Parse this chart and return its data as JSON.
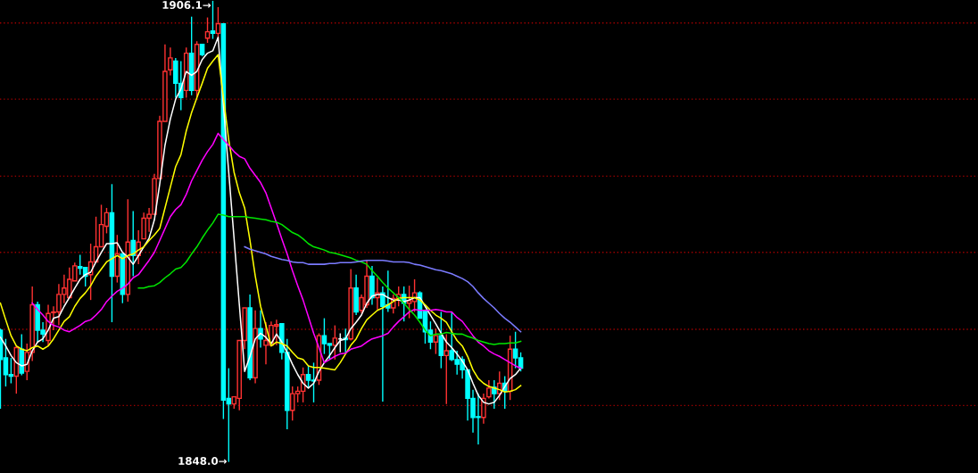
{
  "chart_data": {
    "type": "candlestick",
    "categories": [
      null,
      null,
      null,
      null,
      null,
      null,
      null,
      null,
      null,
      null,
      null,
      null,
      null,
      null,
      null,
      null,
      null,
      null,
      null,
      null,
      null,
      null,
      null,
      null,
      null,
      null,
      null,
      null,
      null,
      null,
      null,
      null,
      null,
      null,
      null,
      null,
      null,
      null,
      null,
      null,
      null,
      null,
      null,
      null,
      null,
      null,
      null,
      null,
      null,
      null,
      null,
      null,
      null,
      null,
      null,
      null,
      null,
      null,
      null,
      null,
      null,
      null,
      null,
      null,
      null,
      null,
      null,
      null,
      null,
      null,
      null,
      null,
      null,
      null,
      null,
      null,
      null,
      null,
      null,
      null,
      null,
      null,
      null,
      null,
      null,
      null,
      null,
      null,
      null,
      null,
      null,
      null,
      null,
      null,
      null,
      null,
      null,
      null,
      null
    ],
    "ohlc": [
      [
        1864.6,
        1864.8,
        1854.7,
        1860.9
      ],
      [
        1861.1,
        1863.5,
        1857.5,
        1859.0
      ],
      [
        1859.0,
        1861.1,
        1857.9,
        1858.8
      ],
      [
        1858.8,
        1862.6,
        1856.6,
        1862.4
      ],
      [
        1862.2,
        1864.1,
        1858.9,
        1859.2
      ],
      [
        1859.4,
        1862.9,
        1858.3,
        1861.8
      ],
      [
        1861.8,
        1870.1,
        1860.7,
        1867.8
      ],
      [
        1867.8,
        1868.2,
        1863.1,
        1864.6
      ],
      [
        1864.6,
        1865.6,
        1863.1,
        1864.1
      ],
      [
        1863.3,
        1867.8,
        1862.6,
        1866.7
      ],
      [
        1866.8,
        1867.6,
        1864.6,
        1866.9
      ],
      [
        1866.9,
        1870.4,
        1865.2,
        1869.1
      ],
      [
        1869.1,
        1871.6,
        1868.0,
        1869.9
      ],
      [
        1868.7,
        1872.5,
        1868.7,
        1871.0
      ],
      [
        1870.8,
        1873.1,
        1870.8,
        1872.7
      ],
      [
        1872.6,
        1874.1,
        1871.6,
        1872.4
      ],
      [
        1872.5,
        1872.5,
        1870.1,
        1871.4
      ],
      [
        1871.6,
        1875.5,
        1868.4,
        1873.2
      ],
      [
        1873.2,
        1878.9,
        1873.2,
        1875.1
      ],
      [
        1875.1,
        1880.4,
        1875.1,
        1877.9
      ],
      [
        1877.7,
        1880.0,
        1876.8,
        1879.4
      ],
      [
        1879.4,
        1883.0,
        1865.6,
        1871.4
      ],
      [
        1871.4,
        1876.6,
        1870.6,
        1874.2
      ],
      [
        1874.2,
        1874.2,
        1868.0,
        1869.1
      ],
      [
        1869.1,
        1881.1,
        1868.2,
        1875.7
      ],
      [
        1875.9,
        1879.6,
        1871.4,
        1874.0
      ],
      [
        1874.0,
        1877.2,
        1872.9,
        1875.7
      ],
      [
        1876.1,
        1879.4,
        1876.1,
        1878.7
      ],
      [
        1878.7,
        1880.0,
        1877.0,
        1879.2
      ],
      [
        1879.2,
        1884.3,
        1879.2,
        1883.7
      ],
      [
        1883.7,
        1891.6,
        1883.7,
        1890.9
      ],
      [
        1890.9,
        1900.6,
        1890.9,
        1897.2
      ],
      [
        1897.4,
        1900.2,
        1896.7,
        1898.9
      ],
      [
        1898.5,
        1898.9,
        1893.9,
        1895.7
      ],
      [
        1895.7,
        1898.5,
        1892.3,
        1893.9
      ],
      [
        1894.8,
        1900.2,
        1893.9,
        1899.5
      ],
      [
        1899.5,
        1904.1,
        1894.2,
        1894.8
      ],
      [
        1894.8,
        1901.0,
        1894.0,
        1900.6
      ],
      [
        1900.6,
        1900.6,
        1899.1,
        1899.3
      ],
      [
        1901.4,
        1904.0,
        1900.8,
        1902.2
      ],
      [
        1902.3,
        1906.1,
        1901.3,
        1902.0
      ],
      [
        1902.0,
        1905.3,
        1901.3,
        1903.2
      ],
      [
        1903.2,
        1903.2,
        1853.4,
        1855.8
      ],
      [
        1856.0,
        1859.8,
        1848.0,
        1855.3
      ],
      [
        1855.3,
        1856.2,
        1854.7,
        1856.2
      ],
      [
        1856.0,
        1863.3,
        1854.5,
        1863.3
      ],
      [
        1863.3,
        1867.4,
        1862.2,
        1867.4
      ],
      [
        1867.4,
        1869.1,
        1858.3,
        1858.6
      ],
      [
        1858.6,
        1867.1,
        1857.9,
        1864.8
      ],
      [
        1864.8,
        1867.1,
        1862.4,
        1863.5
      ],
      [
        1862.7,
        1865.6,
        1860.3,
        1863.3
      ],
      [
        1862.7,
        1865.7,
        1862.7,
        1865.2
      ],
      [
        1865.1,
        1865.9,
        1862.7,
        1865.3
      ],
      [
        1865.4,
        1865.4,
        1860.9,
        1861.8
      ],
      [
        1861.8,
        1863.5,
        1852.1,
        1854.5
      ],
      [
        1854.5,
        1857.5,
        1853.2,
        1856.6
      ],
      [
        1856.6,
        1857.5,
        1855.5,
        1856.9
      ],
      [
        1856.9,
        1859.9,
        1855.5,
        1859.0
      ],
      [
        1859.0,
        1860.1,
        1857.3,
        1858.3
      ],
      [
        1858.3,
        1860.5,
        1855.5,
        1858.2
      ],
      [
        1858.3,
        1864.2,
        1857.7,
        1863.9
      ],
      [
        1863.9,
        1866.1,
        1861.6,
        1862.9
      ],
      [
        1862.9,
        1862.9,
        1860.9,
        1862.7
      ],
      [
        1862.7,
        1865.2,
        1860.9,
        1863.6
      ],
      [
        1863.5,
        1864.2,
        1861.8,
        1863.5
      ],
      [
        1863.6,
        1864.8,
        1861.6,
        1863.4
      ],
      [
        1863.5,
        1872.3,
        1863.3,
        1869.9
      ],
      [
        1869.9,
        1871.6,
        1866.5,
        1866.9
      ],
      [
        1867.1,
        1869.1,
        1866.7,
        1868.7
      ],
      [
        1867.8,
        1873.4,
        1867.4,
        1871.4
      ],
      [
        1871.4,
        1872.7,
        1867.8,
        1868.7
      ],
      [
        1868.7,
        1871.2,
        1867.2,
        1869.3
      ],
      [
        1869.3,
        1870.1,
        1855.6,
        1867.6
      ],
      [
        1867.8,
        1872.1,
        1866.9,
        1867.4
      ],
      [
        1867.4,
        1869.1,
        1866.7,
        1868.6
      ],
      [
        1868.6,
        1870.1,
        1867.6,
        1869.1
      ],
      [
        1869.1,
        1870.1,
        1865.7,
        1868.0
      ],
      [
        1868.0,
        1870.2,
        1866.1,
        1868.3
      ],
      [
        1868.2,
        1871.0,
        1866.9,
        1869.3
      ],
      [
        1869.3,
        1869.5,
        1866.1,
        1866.1
      ],
      [
        1867.1,
        1867.2,
        1862.9,
        1864.4
      ],
      [
        1864.6,
        1865.7,
        1862.2,
        1863.1
      ],
      [
        1863.1,
        1864.8,
        1861.6,
        1863.9
      ],
      [
        1863.9,
        1866.9,
        1859.8,
        1861.4
      ],
      [
        1861.4,
        1864.1,
        1855.3,
        1862.0
      ],
      [
        1862.0,
        1866.9,
        1860.7,
        1860.9
      ],
      [
        1860.9,
        1862.0,
        1859.0,
        1860.3
      ],
      [
        1860.9,
        1861.3,
        1858.5,
        1859.6
      ],
      [
        1859.6,
        1859.6,
        1853.2,
        1856.0
      ],
      [
        1856.0,
        1857.1,
        1851.7,
        1853.6
      ],
      [
        1853.7,
        1856.6,
        1850.2,
        1853.6
      ],
      [
        1853.6,
        1856.6,
        1852.8,
        1856.0
      ],
      [
        1856.2,
        1858.3,
        1856.0,
        1857.3
      ],
      [
        1857.4,
        1858.3,
        1854.7,
        1856.6
      ],
      [
        1856.6,
        1859.4,
        1855.8,
        1857.9
      ],
      [
        1857.9,
        1858.8,
        1854.7,
        1856.9
      ],
      [
        1856.9,
        1863.9,
        1855.8,
        1862.2
      ],
      [
        1862.2,
        1864.4,
        1859.8,
        1861.1
      ],
      [
        1861.1,
        1861.8,
        1859.4,
        1859.8
      ]
    ],
    "colors": [
      "#00ffff",
      "#00ffff",
      "#00ffff",
      "#ff3232",
      "#00ffff",
      "#ff3232",
      "#ff3232",
      "#00ffff",
      "#00ffff",
      "#ff3232",
      "#ff3232",
      "#ff3232",
      "#ff3232",
      "#ff3232",
      "#ff3232",
      "#00ffff",
      "#00ffff",
      "#ff3232",
      "#ff3232",
      "#ff3232",
      "#ff3232",
      "#00ffff",
      "#ff3232",
      "#00ffff",
      "#ff3232",
      "#00ffff",
      "#ff3232",
      "#ff3232",
      "#ff3232",
      "#ff3232",
      "#ff3232",
      "#ff3232",
      "#ff3232",
      "#00ffff",
      "#00ffff",
      "#ff3232",
      "#00ffff",
      "#ff3232",
      "#00ffff",
      "#ff3232",
      "#00ffff",
      "#ff3232",
      "#00ffff",
      "#00ffff",
      "#ff3232",
      "#ff3232",
      "#ff3232",
      "#00ffff",
      "#ff3232",
      "#00ffff",
      "#ff3232",
      "#ff3232",
      "#ff3232",
      "#00ffff",
      "#00ffff",
      "#ff3232",
      "#ff3232",
      "#ff3232",
      "#00ffff",
      "#00ffff",
      "#ff3232",
      "#00ffff",
      "#00ffff",
      "#ff3232",
      "#ffffff",
      "#00ffff",
      "#ff3232",
      "#00ffff",
      "#ff3232",
      "#ff3232",
      "#00ffff",
      "#ff3232",
      "#00ffff",
      "#00ffff",
      "#ff3232",
      "#ff3232",
      "#00ffff",
      "#ff3232",
      "#ff3232",
      "#00ffff",
      "#00ffff",
      "#00ffff",
      "#ff3232",
      "#00ffff",
      "#ff3232",
      "#00ffff",
      "#00ffff",
      "#00ffff",
      "#00ffff",
      "#00ffff",
      "#00ffff",
      "#ff3232",
      "#ff3232",
      "#00ffff",
      "#ff3232",
      "#00ffff",
      "#ff3232",
      "#00ffff",
      "#00ffff"
    ],
    "series": [
      {
        "type": "line",
        "color": "#ffffff",
        "values": [
          1863.7,
          1862.6,
          1861.4,
          1860.5,
          1860.1,
          1860.3,
          1862.0,
          1863.1,
          1863.5,
          1864.6,
          1866.1,
          1866.3,
          1867.6,
          1868.7,
          1869.9,
          1871.0,
          1871.6,
          1871.9,
          1873.2,
          1874.4,
          1875.5,
          1875.5,
          1875.6,
          1874.4,
          1873.8,
          1872.9,
          1874.0,
          1875.1,
          1876.2,
          1878.5,
          1883.0,
          1887.9,
          1891.2,
          1893.7,
          1895.0,
          1897.2,
          1896.7,
          1897.2,
          1898.7,
          1899.5,
          1899.8,
          1901.5,
          1892.9,
          1884.5,
          1876.2,
          1867.8,
          1859.4,
          1861.3,
          1863.5,
          1864.2,
          1863.7,
          1862.9,
          1864.1,
          1863.1,
          1861.8,
          1860.3,
          1859.0,
          1857.9,
          1857.3,
          1857.9,
          1859.4,
          1860.5,
          1861.4,
          1862.4,
          1863.3,
          1863.5,
          1864.8,
          1865.6,
          1866.5,
          1868.0,
          1868.9,
          1869.1,
          1869.1,
          1868.7,
          1868.4,
          1868.4,
          1868.2,
          1868.4,
          1868.7,
          1868.7,
          1867.6,
          1866.5,
          1865.4,
          1864.2,
          1863.1,
          1862.4,
          1861.6,
          1860.7,
          1859.6,
          1857.9,
          1856.4,
          1855.5,
          1855.3,
          1855.5,
          1856.4,
          1857.5,
          1858.5,
          1859.0,
          1859.8
        ]
      },
      {
        "type": "line",
        "color": "#ffff00",
        "values": [
          1868.0,
          1865.9,
          1863.9,
          1862.6,
          1862.2,
          1862.0,
          1862.4,
          1862.6,
          1862.2,
          1862.6,
          1863.5,
          1864.6,
          1865.7,
          1866.3,
          1867.6,
          1868.6,
          1869.3,
          1870.2,
          1871.4,
          1872.3,
          1873.2,
          1873.6,
          1874.0,
          1873.6,
          1874.0,
          1874.2,
          1874.7,
          1875.1,
          1875.9,
          1876.6,
          1877.4,
          1880.0,
          1882.6,
          1885.2,
          1886.7,
          1889.7,
          1892.0,
          1893.9,
          1895.7,
          1897.6,
          1898.5,
          1899.3,
          1893.9,
          1888.6,
          1884.5,
          1881.9,
          1880.0,
          1875.9,
          1871.4,
          1867.6,
          1865.2,
          1862.6,
          1863.1,
          1862.9,
          1862.6,
          1861.8,
          1861.1,
          1860.9,
          1860.1,
          1859.9,
          1859.9,
          1859.8,
          1859.7,
          1859.6,
          1860.5,
          1861.6,
          1862.7,
          1863.5,
          1864.8,
          1865.9,
          1866.5,
          1867.1,
          1867.4,
          1867.8,
          1868.2,
          1868.6,
          1868.7,
          1868.7,
          1868.7,
          1868.4,
          1867.8,
          1867.1,
          1866.5,
          1866.1,
          1865.6,
          1864.4,
          1863.3,
          1862.6,
          1861.3,
          1859.6,
          1858.5,
          1857.9,
          1857.5,
          1857.3,
          1857.1,
          1856.8,
          1856.9,
          1857.1,
          1857.6
        ]
      },
      {
        "type": "line",
        "color": "#ff00ff",
        "values": [
          null,
          null,
          null,
          null,
          null,
          null,
          1868.0,
          1867.2,
          1866.5,
          1865.7,
          1865.2,
          1865.0,
          1864.6,
          1864.4,
          1864.8,
          1865.2,
          1865.7,
          1865.9,
          1866.5,
          1867.2,
          1868.2,
          1868.9,
          1869.5,
          1869.9,
          1870.4,
          1871.2,
          1871.6,
          1872.5,
          1873.4,
          1874.4,
          1875.9,
          1877.4,
          1878.9,
          1879.8,
          1880.4,
          1881.7,
          1883.4,
          1884.7,
          1886.0,
          1887.1,
          1888.0,
          1889.4,
          1888.6,
          1887.9,
          1887.1,
          1886.5,
          1886.2,
          1885.0,
          1884.1,
          1883.2,
          1881.9,
          1880.0,
          1878.1,
          1876.1,
          1874.2,
          1872.1,
          1870.2,
          1868.4,
          1866.3,
          1864.2,
          1862.4,
          1860.5,
          1860.9,
          1861.3,
          1861.6,
          1861.7,
          1862.2,
          1862.4,
          1862.6,
          1863.1,
          1863.5,
          1863.7,
          1863.9,
          1864.2,
          1865.0,
          1865.7,
          1866.3,
          1866.9,
          1867.2,
          1867.1,
          1867.1,
          1867.1,
          1867.2,
          1867.1,
          1866.9,
          1866.9,
          1866.2,
          1865.7,
          1864.8,
          1863.9,
          1863.1,
          1862.6,
          1862.0,
          1861.6,
          1861.3,
          1860.9,
          1860.5,
          1860.1,
          1859.8
        ]
      },
      {
        "type": "line",
        "color": "#00e600",
        "values": [
          null,
          null,
          null,
          null,
          null,
          null,
          null,
          null,
          null,
          null,
          null,
          null,
          null,
          null,
          null,
          null,
          null,
          null,
          null,
          null,
          null,
          null,
          null,
          null,
          null,
          null,
          1869.9,
          1869.9,
          1870.1,
          1870.2,
          1870.6,
          1871.2,
          1871.7,
          1872.3,
          1872.5,
          1873.2,
          1874.2,
          1875.1,
          1876.2,
          1877.2,
          1878.1,
          1879.2,
          1879.1,
          1878.9,
          1878.9,
          1878.9,
          1878.9,
          1878.8,
          1878.7,
          1878.6,
          1878.5,
          1878.3,
          1878.2,
          1877.9,
          1877.4,
          1876.9,
          1876.6,
          1876.1,
          1875.5,
          1875.1,
          1874.9,
          1874.7,
          1874.4,
          1874.3,
          1874.1,
          1873.9,
          1873.7,
          1873.4,
          1873.2,
          1872.9,
          1872.1,
          1871.4,
          1870.6,
          1869.9,
          1869.3,
          1868.7,
          1868.0,
          1867.2,
          1866.5,
          1865.6,
          1864.6,
          1863.9,
          1864.1,
          1864.1,
          1864.3,
          1864.2,
          1864.1,
          1864.1,
          1863.8,
          1863.6,
          1863.3,
          1863.1,
          1862.9,
          1862.8,
          1862.9,
          1862.9,
          1863.0,
          1863.0,
          1863.2
        ]
      },
      {
        "type": "line",
        "color": "#7b7bff",
        "values": [
          null,
          null,
          null,
          null,
          null,
          null,
          null,
          null,
          null,
          null,
          null,
          null,
          null,
          null,
          null,
          null,
          null,
          null,
          null,
          null,
          null,
          null,
          null,
          null,
          null,
          null,
          null,
          null,
          null,
          null,
          null,
          null,
          null,
          null,
          null,
          null,
          null,
          null,
          null,
          null,
          null,
          null,
          null,
          null,
          null,
          null,
          1875.1,
          1874.8,
          1874.6,
          1874.4,
          1874.2,
          1873.9,
          1873.7,
          1873.5,
          1873.4,
          1873.2,
          1873.1,
          1873.1,
          1872.9,
          1872.9,
          1872.9,
          1872.9,
          1873.0,
          1873.0,
          1873.1,
          1873.1,
          1873.1,
          1873.2,
          1873.3,
          1873.4,
          1873.4,
          1873.4,
          1873.4,
          1873.3,
          1873.2,
          1873.2,
          1873.2,
          1873.1,
          1872.9,
          1872.8,
          1872.6,
          1872.4,
          1872.2,
          1872.1,
          1871.9,
          1871.7,
          1871.4,
          1871.1,
          1870.7,
          1870.1,
          1869.3,
          1868.6,
          1868.0,
          1867.4,
          1866.7,
          1866.1,
          1865.6,
          1865.0,
          1864.4
        ]
      }
    ],
    "ylim": [
      1846.6,
      1906.2
    ],
    "yticks": [
      {
        "value": 1903.3,
        "label": null
      },
      {
        "value": 1893.7,
        "label": null
      },
      {
        "value": 1884.0,
        "label": null
      },
      {
        "value": 1874.4,
        "label": null
      },
      {
        "value": 1864.7,
        "label": null
      },
      {
        "value": 1855.1,
        "label": null
      }
    ],
    "grid": "y",
    "annotations": [
      "1906.1→",
      "1848.0→"
    ]
  }
}
